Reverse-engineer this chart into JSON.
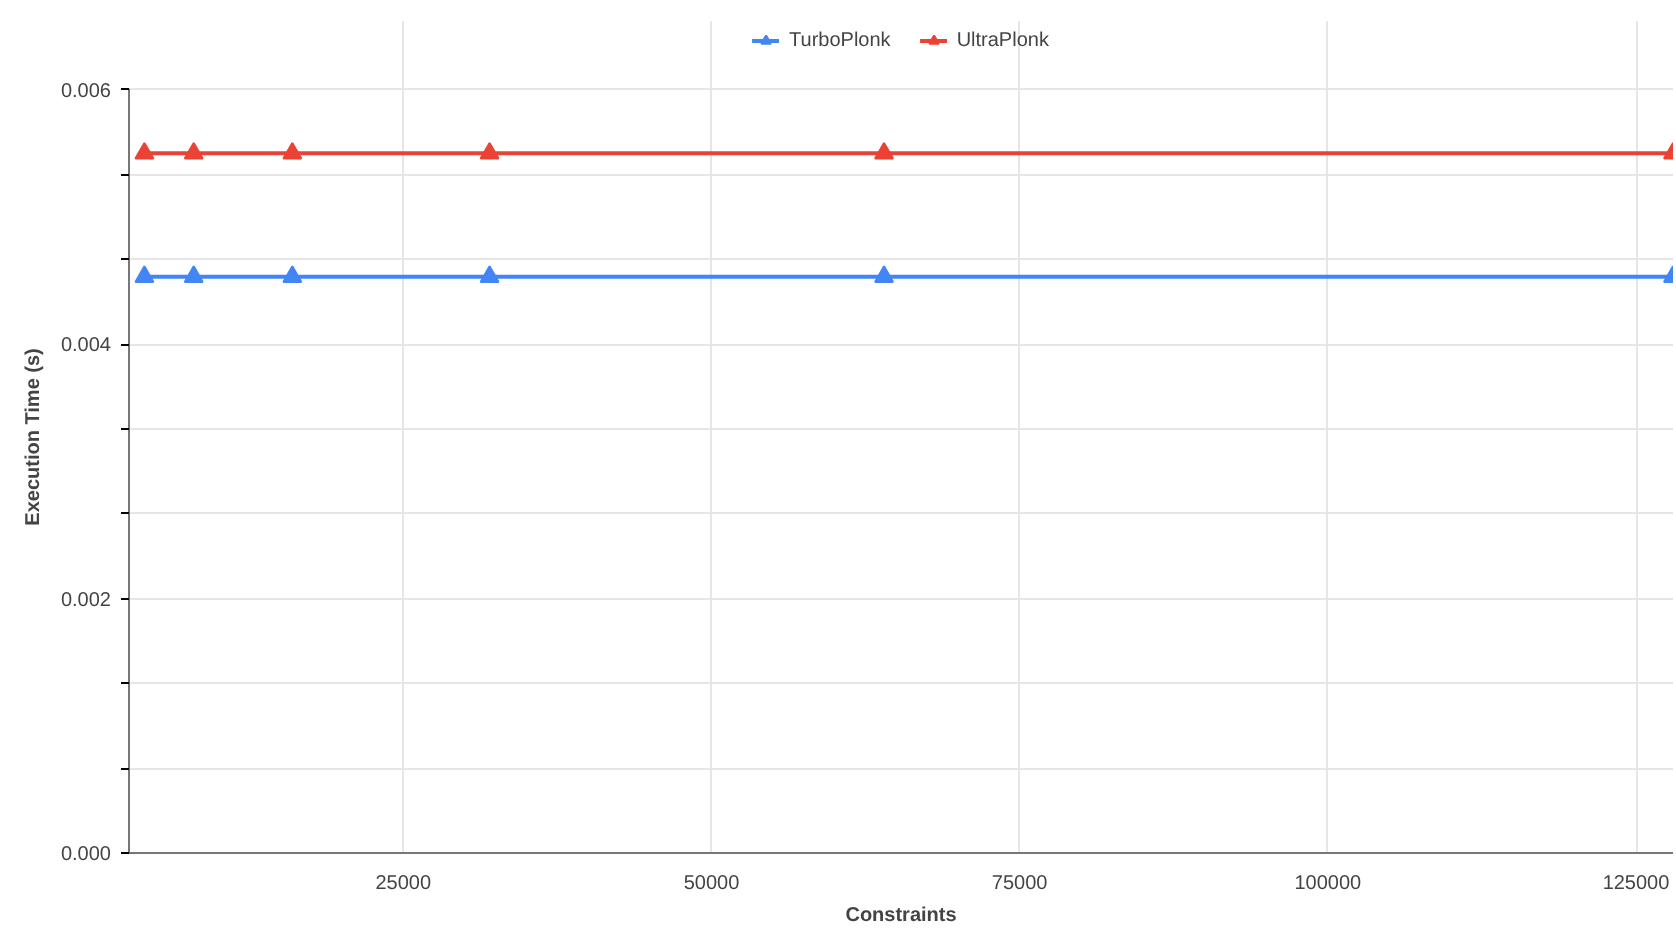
{
  "chart_data": {
    "type": "line",
    "xlabel": "Constraints",
    "ylabel": "Execution Time (s)",
    "x": [
      4000,
      8000,
      16000,
      32000,
      64000,
      128000
    ],
    "series": [
      {
        "name": "TurboPlonk",
        "color": "#4285f4",
        "values": [
          0.00453,
          0.00453,
          0.00453,
          0.00453,
          0.00453,
          0.00453
        ]
      },
      {
        "name": "UltraPlonk",
        "color": "#ea4335",
        "values": [
          0.0055,
          0.0055,
          0.0055,
          0.0055,
          0.0055,
          0.0055
        ]
      }
    ],
    "xlim": [
      2750,
      128000
    ],
    "xticks": [
      25000,
      50000,
      75000,
      100000,
      125000
    ],
    "ylim": [
      0,
      0.006
    ],
    "yticks": [
      {
        "value": 0,
        "label": "0.000"
      },
      {
        "value": 0.000667,
        "label": null
      },
      {
        "value": 0.001333,
        "label": null
      },
      {
        "value": 0.002,
        "label": "0.002"
      },
      {
        "value": 0.002667,
        "label": null
      },
      {
        "value": 0.003333,
        "label": null
      },
      {
        "value": 0.004,
        "label": "0.004"
      },
      {
        "value": 0.004667,
        "label": null
      },
      {
        "value": 0.005333,
        "label": null
      },
      {
        "value": 0.006,
        "label": "0.006"
      }
    ],
    "grid": true,
    "legend": "top",
    "marker": "triangle",
    "line_style": "solid"
  }
}
